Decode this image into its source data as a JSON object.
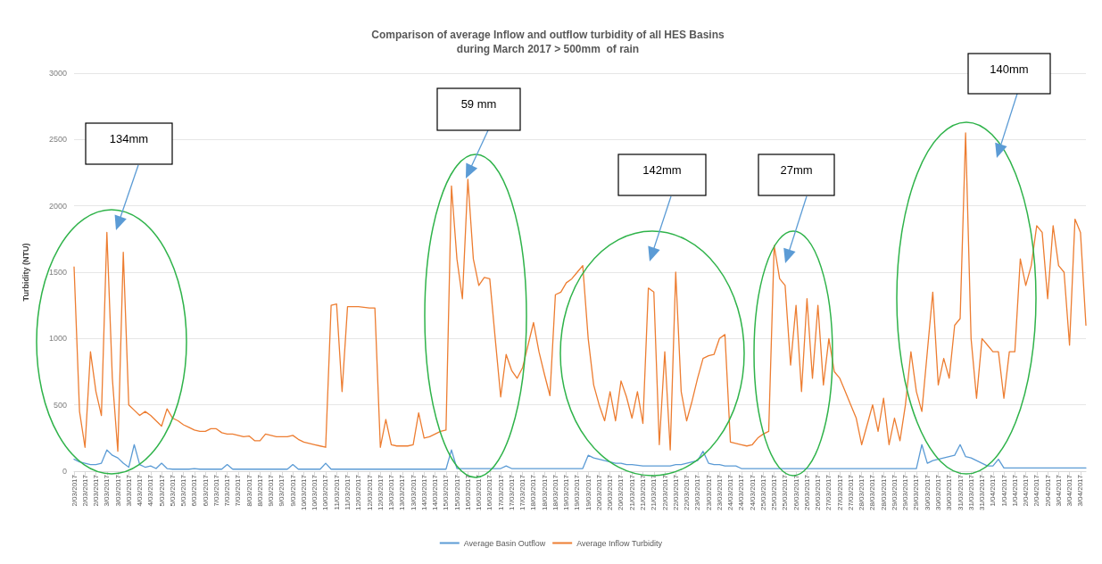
{
  "chart_data": {
    "type": "line",
    "title": "Comparison of average Inflow and outflow turbidity of all HES Basins",
    "subtitle": "during March 2017 > 500mm  of rain",
    "ylabel": "Turbidity (NTU)",
    "categories": [
      "2/03/2017",
      null,
      "2/03/2017",
      null,
      "2/03/2017",
      null,
      "3/03/2017",
      null,
      "3/03/2017",
      null,
      "3/03/2017",
      null,
      "4/03/2017",
      null,
      "4/03/2017",
      null,
      "5/03/2017",
      null,
      "5/03/2017",
      null,
      "5/03/2017",
      null,
      "6/03/2017",
      null,
      "6/03/2017",
      null,
      "7/03/2017",
      null,
      "7/03/2017",
      null,
      "7/03/2017",
      null,
      "8/03/2017",
      null,
      "8/03/2017",
      null,
      "9/03/2017",
      null,
      "9/03/2017",
      null,
      "9/03/2017",
      null,
      "10/03/2017",
      null,
      "10/03/2017",
      null,
      "10/03/2017",
      null,
      "11/03/2017",
      null,
      "11/03/2017",
      null,
      "12/03/2017",
      null,
      "12/03/2017",
      null,
      "12/03/2017",
      null,
      "13/03/2017",
      null,
      "13/03/2017",
      null,
      "13/03/2017",
      null,
      "14/03/2017",
      null,
      "14/03/2017",
      null,
      "15/03/2017",
      null,
      "15/03/2017",
      null,
      "16/03/2017",
      null,
      "16/03/2017",
      null,
      "16/03/2017",
      null,
      "17/03/2017",
      null,
      "17/03/2017",
      null,
      "17/03/2017",
      null,
      "18/03/2017",
      null,
      "18/03/2017",
      null,
      "18/03/2017",
      null,
      "19/03/2017",
      null,
      "19/03/2017",
      null,
      "19/03/2017",
      null,
      "20/03/2017",
      null,
      "20/03/2017",
      null,
      "20/03/2017",
      null,
      "21/03/2017",
      null,
      "21/03/2017",
      null,
      "21/03/2017",
      null,
      "22/03/2017",
      null,
      "22/03/2017",
      null,
      "22/03/2017",
      null,
      "23/03/2017",
      null,
      "23/03/2017",
      null,
      "23/03/2017",
      null,
      "24/03/2017",
      null,
      "24/03/2017",
      null,
      "24/03/2017",
      null,
      "25/03/2017",
      null,
      "25/03/2017",
      null,
      "25/03/2017",
      null,
      "26/03/2017",
      null,
      "26/03/2017",
      null,
      "26/03/2017",
      null,
      "27/03/2017",
      null,
      "27/03/2017",
      null,
      "27/03/2017",
      null,
      "28/03/2017",
      null,
      "28/03/2017",
      null,
      "28/03/2017",
      null,
      "29/03/2017",
      null,
      "29/03/2017",
      null,
      "29/03/2017",
      null,
      "30/03/2017",
      null,
      "30/03/2017",
      null,
      "30/03/2017",
      null,
      "31/03/2017",
      null,
      "31/03/2017",
      null,
      "31/03/2017",
      null,
      "1/04/2017",
      null,
      "1/04/2017",
      null,
      "1/04/2017",
      null,
      "2/04/2017",
      null,
      "2/04/2017",
      null,
      "2/04/2017",
      null,
      "3/04/2017",
      null,
      "3/04/2017",
      null,
      "3/04/2017",
      null
    ],
    "series": [
      {
        "name": "Average Basin Outflow",
        "color": "#5b9bd5",
        "values": [
          90,
          70,
          60,
          50,
          50,
          60,
          160,
          120,
          100,
          60,
          30,
          200,
          50,
          30,
          40,
          20,
          60,
          20,
          15,
          15,
          15,
          15,
          20,
          15,
          15,
          15,
          15,
          15,
          50,
          15,
          15,
          15,
          15,
          15,
          15,
          15,
          15,
          15,
          15,
          15,
          50,
          15,
          15,
          15,
          15,
          15,
          60,
          15,
          15,
          15,
          15,
          15,
          15,
          15,
          15,
          15,
          15,
          15,
          15,
          15,
          15,
          15,
          15,
          15,
          15,
          15,
          15,
          15,
          15,
          160,
          20,
          20,
          20,
          20,
          20,
          20,
          20,
          20,
          20,
          40,
          20,
          20,
          20,
          20,
          20,
          20,
          20,
          20,
          20,
          20,
          20,
          20,
          20,
          20,
          120,
          100,
          90,
          80,
          70,
          60,
          60,
          50,
          50,
          45,
          40,
          40,
          40,
          40,
          40,
          40,
          50,
          50,
          60,
          70,
          80,
          150,
          60,
          50,
          50,
          40,
          40,
          40,
          20,
          20,
          20,
          20,
          20,
          20,
          20,
          20,
          20,
          20,
          20,
          20,
          20,
          20,
          20,
          20,
          20,
          20,
          20,
          20,
          20,
          20,
          20,
          20,
          20,
          20,
          20,
          20,
          20,
          20,
          20,
          20,
          20,
          200,
          60,
          80,
          90,
          100,
          110,
          120,
          200,
          110,
          100,
          80,
          60,
          40,
          40,
          90,
          25,
          25,
          25,
          25,
          25,
          25,
          25,
          25,
          25,
          25,
          25,
          25,
          25,
          25,
          25,
          25
        ]
      },
      {
        "name": "Average Inflow Turbidity",
        "color": "#ed7d31",
        "values": [
          1540,
          450,
          180,
          900,
          600,
          420,
          1800,
          700,
          150,
          1650,
          500,
          460,
          420,
          450,
          420,
          380,
          340,
          470,
          400,
          380,
          350,
          330,
          310,
          300,
          300,
          320,
          320,
          290,
          280,
          280,
          270,
          260,
          265,
          230,
          230,
          280,
          270,
          260,
          260,
          260,
          270,
          240,
          220,
          210,
          200,
          190,
          180,
          1250,
          1260,
          600,
          1240,
          1240,
          1240,
          1235,
          1230,
          1230,
          180,
          390,
          200,
          190,
          190,
          190,
          200,
          440,
          250,
          260,
          280,
          300,
          310,
          2150,
          1600,
          1300,
          2200,
          1600,
          1400,
          1460,
          1450,
          1000,
          560,
          880,
          760,
          700,
          780,
          950,
          1120,
          900,
          730,
          570,
          1330,
          1350,
          1420,
          1450,
          1500,
          1550,
          1000,
          650,
          500,
          380,
          600,
          380,
          680,
          560,
          400,
          600,
          360,
          1380,
          1350,
          200,
          900,
          160,
          1500,
          600,
          380,
          530,
          700,
          850,
          870,
          880,
          1000,
          1030,
          220,
          210,
          200,
          190,
          200,
          250,
          280,
          300,
          1700,
          1450,
          1400,
          800,
          1250,
          600,
          1300,
          700,
          1250,
          650,
          1000,
          750,
          700,
          600,
          500,
          400,
          200,
          350,
          500,
          300,
          550,
          200,
          400,
          230,
          500,
          900,
          600,
          450,
          900,
          1350,
          650,
          850,
          700,
          1100,
          1150,
          2550,
          1000,
          550,
          1000,
          950,
          900,
          900,
          550,
          900,
          900,
          1600,
          1400,
          1550,
          1850,
          1800,
          1300,
          1850,
          1550,
          1500,
          950,
          1900,
          1800,
          1100
        ]
      }
    ],
    "ylim": [
      0,
      3000
    ],
    "yticks": [
      0,
      500,
      1000,
      1500,
      2000,
      2500,
      3000
    ],
    "grid": "y",
    "legend": "bottom",
    "marker": "none",
    "line_style": "solid",
    "annotations": [
      "134mm",
      "59 mm",
      "142mm",
      "27mm",
      "140mm"
    ]
  }
}
